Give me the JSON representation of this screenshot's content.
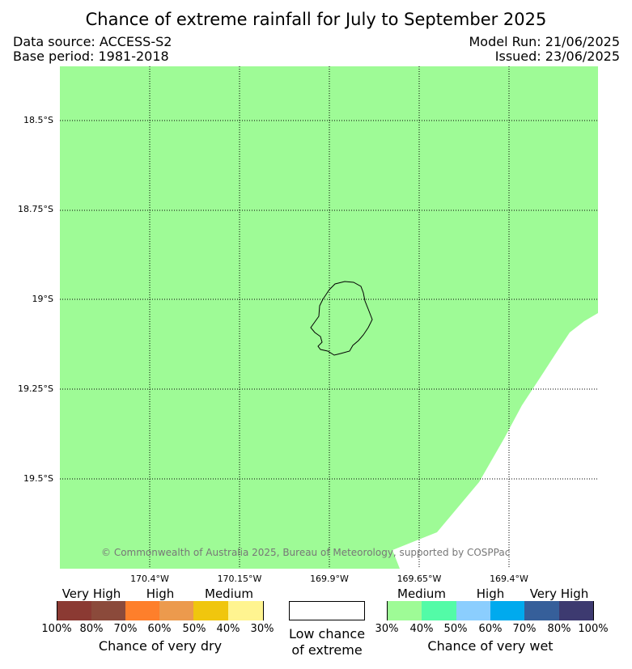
{
  "title": "Chance of extreme rainfall for July to September 2025",
  "header": {
    "data_source": "Data source: ACCESS-S2",
    "base_period": "Base period: 1981-2018",
    "model_run": "Model Run: 21/06/2025",
    "issued": "Issued: 23/06/2025"
  },
  "map": {
    "lat_labels": [
      "18.5°S",
      "18.75°S",
      "19°S",
      "19.25°S",
      "19.5°S"
    ],
    "lon_labels": [
      "170.4°W",
      "170.15°W",
      "169.9°W",
      "169.65°W",
      "169.4°W"
    ],
    "copyright": "© Commonwealth of Australia 2025, Bureau of Meteorology, supported by COSPPac",
    "fill_colors": {
      "wet_medium": "#9efb96",
      "low": "#ffffff"
    }
  },
  "legend": {
    "dry": {
      "categories": [
        "Very High",
        "High",
        "Medium"
      ],
      "colors": [
        "#8b3a33",
        "#8b4a3b",
        "#fe7f2b",
        "#ec9a4d",
        "#f0c60e",
        "#fff490"
      ],
      "percents": [
        "100%",
        "80%",
        "70%",
        "60%",
        "50%",
        "40%",
        "30%"
      ],
      "caption": "Chance of very dry"
    },
    "neutral": {
      "caption_line1": "Low chance",
      "caption_line2": "of extreme",
      "color": "#ffffff"
    },
    "wet": {
      "categories": [
        "Medium",
        "High",
        "Very High"
      ],
      "colors": [
        "#9efb96",
        "#53fba7",
        "#8bcefe",
        "#00aaee",
        "#365f9a",
        "#3d3a70"
      ],
      "percents": [
        "30%",
        "40%",
        "50%",
        "60%",
        "70%",
        "80%",
        "100%"
      ],
      "caption": "Chance of very wet"
    }
  }
}
